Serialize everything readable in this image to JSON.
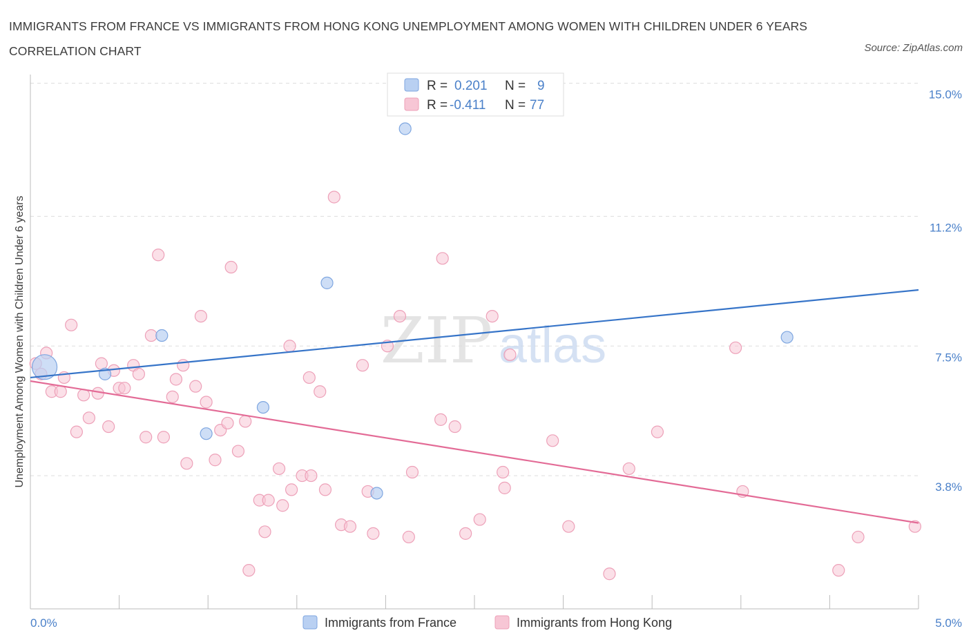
{
  "header": {
    "title": "IMMIGRANTS FROM FRANCE VS IMMIGRANTS FROM HONG KONG UNEMPLOYMENT AMONG WOMEN WITH CHILDREN UNDER 6 YEARS CORRELATION CHART",
    "source": "Source: ZipAtlas.com"
  },
  "watermark": {
    "zip": "ZIP",
    "atlas": "atlas"
  },
  "colors": {
    "france_fill": "#b9d0f2",
    "france_stroke": "#7ea6e0",
    "france_line": "#3674c8",
    "hk_fill": "#f7c6d5",
    "hk_stroke": "#eda0b8",
    "hk_line": "#e36b96",
    "tick_text": "#4a80c9",
    "grid": "#dddddd"
  },
  "chart_data": {
    "type": "scatter",
    "title": "IMMIGRANTS FROM FRANCE VS IMMIGRANTS FROM HONG KONG UNEMPLOYMENT AMONG WOMEN WITH CHILDREN UNDER 6 YEARS CORRELATION CHART",
    "xlabel": "",
    "ylabel": "Unemployment Among Women with Children Under 6 years",
    "xlim": [
      0,
      5
    ],
    "ylim": [
      0,
      15
    ],
    "x_tick_labels": [
      "0.0%",
      "5.0%"
    ],
    "y_ticks": [
      {
        "value": 3.8,
        "label": "3.8%"
      },
      {
        "value": 7.5,
        "label": "7.5%"
      },
      {
        "value": 11.2,
        "label": "11.2%"
      },
      {
        "value": 15.0,
        "label": "15.0%"
      }
    ],
    "grid": "horizontal dashed",
    "legend": {
      "placement": "top-center",
      "rows": [
        {
          "r_label": "R =",
          "r_value": "0.201",
          "n_label": "N =",
          "n_value": "9"
        },
        {
          "r_label": "R =",
          "r_value": "-0.411",
          "n_label": "N =",
          "n_value": "77"
        }
      ]
    },
    "series": [
      {
        "name": "Immigrants from France",
        "trend": {
          "x": [
            0,
            5
          ],
          "y": [
            6.6,
            9.1
          ]
        },
        "points": [
          {
            "x": 0.08,
            "y": 6.9,
            "big": true
          },
          {
            "x": 0.42,
            "y": 6.7
          },
          {
            "x": 0.74,
            "y": 7.8
          },
          {
            "x": 0.99,
            "y": 5.0
          },
          {
            "x": 1.31,
            "y": 5.75
          },
          {
            "x": 1.67,
            "y": 9.3
          },
          {
            "x": 1.95,
            "y": 3.3
          },
          {
            "x": 2.11,
            "y": 13.7
          },
          {
            "x": 4.26,
            "y": 7.75
          }
        ]
      },
      {
        "name": "Immigrants from Hong Kong",
        "trend": {
          "x": [
            0,
            5
          ],
          "y": [
            6.5,
            2.45
          ]
        },
        "points": [
          {
            "x": 0.03,
            "y": 7.0
          },
          {
            "x": 0.06,
            "y": 6.7
          },
          {
            "x": 0.09,
            "y": 7.3
          },
          {
            "x": 0.12,
            "y": 6.2
          },
          {
            "x": 0.17,
            "y": 6.2
          },
          {
            "x": 0.19,
            "y": 6.6
          },
          {
            "x": 0.23,
            "y": 8.1
          },
          {
            "x": 0.26,
            "y": 5.05
          },
          {
            "x": 0.3,
            "y": 6.1
          },
          {
            "x": 0.33,
            "y": 5.45
          },
          {
            "x": 0.38,
            "y": 6.15
          },
          {
            "x": 0.4,
            "y": 7.0
          },
          {
            "x": 0.44,
            "y": 5.2
          },
          {
            "x": 0.47,
            "y": 6.8
          },
          {
            "x": 0.5,
            "y": 6.3
          },
          {
            "x": 0.53,
            "y": 6.3
          },
          {
            "x": 0.58,
            "y": 6.95
          },
          {
            "x": 0.61,
            "y": 6.7
          },
          {
            "x": 0.65,
            "y": 4.9
          },
          {
            "x": 0.68,
            "y": 7.8
          },
          {
            "x": 0.72,
            "y": 10.1
          },
          {
            "x": 0.75,
            "y": 4.9
          },
          {
            "x": 0.8,
            "y": 6.05
          },
          {
            "x": 0.82,
            "y": 6.55
          },
          {
            "x": 0.86,
            "y": 6.95
          },
          {
            "x": 0.88,
            "y": 4.15
          },
          {
            "x": 0.93,
            "y": 6.35
          },
          {
            "x": 0.96,
            "y": 8.35
          },
          {
            "x": 0.99,
            "y": 5.9
          },
          {
            "x": 1.04,
            "y": 4.25
          },
          {
            "x": 1.07,
            "y": 5.1
          },
          {
            "x": 1.11,
            "y": 5.3
          },
          {
            "x": 1.13,
            "y": 9.75
          },
          {
            "x": 1.17,
            "y": 4.5
          },
          {
            "x": 1.21,
            "y": 5.35
          },
          {
            "x": 1.23,
            "y": 1.1
          },
          {
            "x": 1.29,
            "y": 3.1
          },
          {
            "x": 1.32,
            "y": 2.2
          },
          {
            "x": 1.34,
            "y": 3.1
          },
          {
            "x": 1.4,
            "y": 4.0
          },
          {
            "x": 1.42,
            "y": 2.95
          },
          {
            "x": 1.46,
            "y": 7.5
          },
          {
            "x": 1.47,
            "y": 3.4
          },
          {
            "x": 1.53,
            "y": 3.8
          },
          {
            "x": 1.57,
            "y": 6.6
          },
          {
            "x": 1.58,
            "y": 3.8
          },
          {
            "x": 1.63,
            "y": 6.2
          },
          {
            "x": 1.66,
            "y": 3.4
          },
          {
            "x": 1.71,
            "y": 11.75
          },
          {
            "x": 1.75,
            "y": 2.4
          },
          {
            "x": 1.8,
            "y": 2.35
          },
          {
            "x": 1.87,
            "y": 6.95
          },
          {
            "x": 1.9,
            "y": 3.35
          },
          {
            "x": 1.93,
            "y": 2.15
          },
          {
            "x": 2.01,
            "y": 7.5
          },
          {
            "x": 2.08,
            "y": 8.35
          },
          {
            "x": 2.13,
            "y": 2.05
          },
          {
            "x": 2.15,
            "y": 3.9
          },
          {
            "x": 2.31,
            "y": 5.4
          },
          {
            "x": 2.32,
            "y": 10.0
          },
          {
            "x": 2.39,
            "y": 5.2
          },
          {
            "x": 2.45,
            "y": 2.15
          },
          {
            "x": 2.53,
            "y": 2.55
          },
          {
            "x": 2.6,
            "y": 8.35
          },
          {
            "x": 2.66,
            "y": 3.9
          },
          {
            "x": 2.67,
            "y": 3.45
          },
          {
            "x": 2.7,
            "y": 7.25
          },
          {
            "x": 2.94,
            "y": 4.8
          },
          {
            "x": 3.03,
            "y": 2.35
          },
          {
            "x": 3.26,
            "y": 1.0
          },
          {
            "x": 3.37,
            "y": 4.0
          },
          {
            "x": 3.53,
            "y": 5.05
          },
          {
            "x": 3.97,
            "y": 7.45
          },
          {
            "x": 4.01,
            "y": 3.35
          },
          {
            "x": 4.55,
            "y": 1.1
          },
          {
            "x": 4.66,
            "y": 2.05
          },
          {
            "x": 4.98,
            "y": 2.35
          }
        ]
      }
    ]
  }
}
